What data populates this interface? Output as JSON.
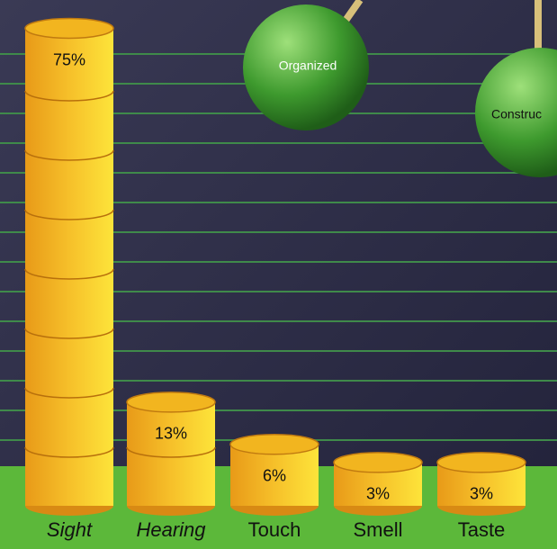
{
  "chart_data": {
    "type": "bar",
    "categories": [
      "Sight",
      "Hearing",
      "Touch",
      "Smell",
      "Taste"
    ],
    "values": [
      75,
      13,
      6,
      3,
      3
    ],
    "value_labels": [
      "75%",
      "13%",
      "6%",
      "3%",
      "3%"
    ],
    "color": "#f2b51f",
    "annotations": [
      "Organized",
      "Construc"
    ]
  }
}
